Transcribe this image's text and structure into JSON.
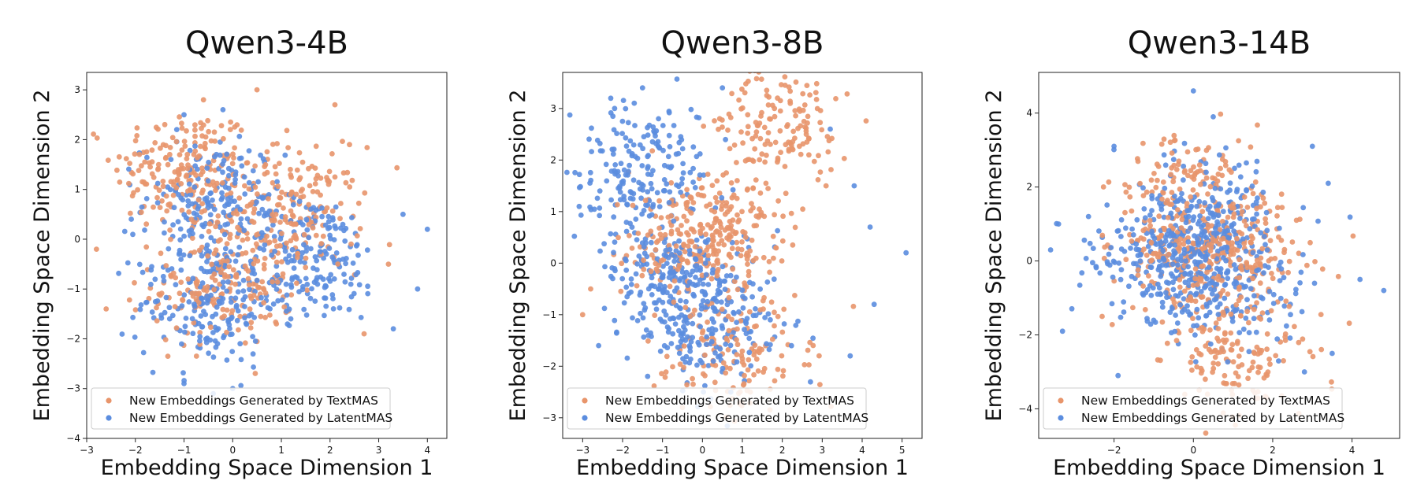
{
  "figure": {
    "colors": {
      "textmas": "#E8956B",
      "latentmas": "#5B8DDF",
      "frame": "#222222",
      "legend_border": "#cccccc"
    },
    "legend_entries": [
      "New Embeddings Generated by TextMAS",
      "New Embeddings Generated by LatentMAS"
    ]
  },
  "chart_data": [
    {
      "type": "scatter",
      "title": "Qwen3-4B",
      "xlabel": "Embedding Space Dimension 1",
      "ylabel": "Embedding Space Dimension 2",
      "xlim": [
        -3.0,
        4.4
      ],
      "ylim": [
        -4.0,
        3.35
      ],
      "xticks": [
        -3,
        -2,
        -1,
        0,
        1,
        2,
        3,
        4
      ],
      "yticks": [
        -4,
        -3,
        -2,
        -1,
        0,
        1,
        2,
        3
      ],
      "legend_placement": "lower-left",
      "series": [
        {
          "name": "New Embeddings Generated by TextMAS",
          "color": "#E8956B",
          "cluster_centers": [
            [
              -1.0,
              1.4
            ],
            [
              -0.2,
              -0.9
            ],
            [
              1.2,
              0.6
            ]
          ],
          "outliers": [
            [
              -0.6,
              2.8
            ],
            [
              0.5,
              3.0
            ],
            [
              2.1,
              2.7
            ],
            [
              -2.6,
              -1.4
            ],
            [
              -2.8,
              -0.2
            ],
            [
              2.4,
              1.9
            ],
            [
              2.7,
              -1.9
            ],
            [
              3.2,
              -0.5
            ]
          ]
        },
        {
          "name": "New Embeddings Generated by LatentMAS",
          "color": "#5B8DDF",
          "cluster_centers": [
            [
              -0.4,
              0.7
            ],
            [
              -0.5,
              -1.3
            ],
            [
              1.6,
              -0.4
            ]
          ],
          "outliers": [
            [
              -1.0,
              2.5
            ],
            [
              -0.2,
              2.6
            ],
            [
              4.0,
              0.2
            ],
            [
              3.8,
              -1.0
            ],
            [
              3.5,
              0.5
            ],
            [
              -1.0,
              -2.9
            ],
            [
              -0.4,
              -3.1
            ],
            [
              0.0,
              -3.0
            ],
            [
              3.3,
              -1.8
            ]
          ]
        }
      ]
    },
    {
      "type": "scatter",
      "title": "Qwen3-8B",
      "xlabel": "Embedding Space Dimension 1",
      "ylabel": "Embedding Space Dimension 2",
      "xlim": [
        -3.5,
        5.5
      ],
      "ylim": [
        -3.4,
        3.7
      ],
      "xticks": [
        -3,
        -2,
        -1,
        0,
        1,
        2,
        3,
        4,
        5
      ],
      "yticks": [
        -3,
        -2,
        -1,
        0,
        1,
        2,
        3
      ],
      "legend_placement": "lower-left",
      "series": [
        {
          "name": "New Embeddings Generated by TextMAS",
          "color": "#E8956B",
          "cluster_centers": [
            [
              -0.5,
              0.4
            ],
            [
              0.6,
              0.6
            ],
            [
              0.9,
              -1.7
            ],
            [
              1.9,
              2.6
            ]
          ],
          "outliers": [
            [
              -3.0,
              -1.0
            ],
            [
              -2.8,
              -0.5
            ],
            [
              2.2,
              3.1
            ],
            [
              2.6,
              2.5
            ],
            [
              1.2,
              -2.5
            ],
            [
              -0.5,
              -2.8
            ]
          ]
        },
        {
          "name": "New Embeddings Generated by LatentMAS",
          "color": "#5B8DDF",
          "cluster_centers": [
            [
              -0.8,
              -0.3
            ],
            [
              0.2,
              -1.2
            ],
            [
              -1.5,
              1.8
            ]
          ],
          "outliers": [
            [
              -1.5,
              3.4
            ],
            [
              0.5,
              3.4
            ],
            [
              -2.2,
              3.0
            ],
            [
              5.1,
              0.2
            ],
            [
              4.3,
              -0.8
            ],
            [
              4.2,
              0.7
            ],
            [
              3.8,
              1.5
            ],
            [
              3.2,
              2.6
            ],
            [
              -2.6,
              -1.6
            ],
            [
              3.7,
              -1.8
            ],
            [
              -1.1,
              2.8
            ]
          ]
        }
      ]
    },
    {
      "type": "scatter",
      "title": "Qwen3-14B",
      "xlabel": "Embedding Space Dimension 1",
      "ylabel": "Embedding Space Dimension 2",
      "xlim": [
        -3.9,
        5.2
      ],
      "ylim": [
        -4.8,
        5.1
      ],
      "xticks": [
        -2,
        0,
        2,
        4
      ],
      "yticks": [
        -4,
        -2,
        0,
        2,
        4
      ],
      "legend_placement": "lower-left",
      "series": [
        {
          "name": "New Embeddings Generated by TextMAS",
          "color": "#E8956B",
          "cluster_centers": [
            [
              -0.4,
              0.2
            ],
            [
              1.2,
              0.1
            ],
            [
              1.0,
              -2.6
            ],
            [
              0.2,
              1.8
            ]
          ],
          "outliers": [
            [
              -2.3,
              -1.5
            ],
            [
              2.6,
              1.1
            ],
            [
              0.3,
              -3.2
            ],
            [
              1.5,
              -3.5
            ]
          ]
        },
        {
          "name": "New Embeddings Generated by LatentMAS",
          "color": "#5B8DDF",
          "cluster_centers": [
            [
              -0.8,
              -0.1
            ],
            [
              0.7,
              -0.6
            ],
            [
              0.3,
              1.0
            ]
          ],
          "outliers": [
            [
              0.0,
              4.6
            ],
            [
              0.5,
              3.9
            ],
            [
              -2.0,
              3.1
            ],
            [
              4.8,
              -0.8
            ],
            [
              4.2,
              -0.5
            ],
            [
              3.5,
              -2.5
            ],
            [
              -3.3,
              -1.9
            ],
            [
              -3.6,
              0.3
            ],
            [
              -1.9,
              -3.1
            ],
            [
              2.8,
              -3.0
            ],
            [
              3.0,
              3.1
            ],
            [
              3.4,
              2.1
            ],
            [
              -3.4,
              1.0
            ]
          ]
        }
      ]
    }
  ]
}
